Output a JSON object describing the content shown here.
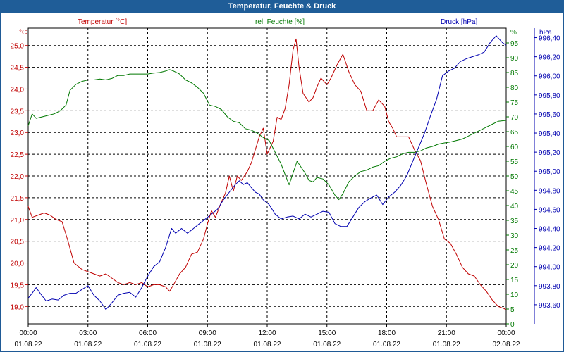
{
  "window": {
    "title": "Temperatur, Feuchte & Druck"
  },
  "colors": {
    "temperature": "#c00000",
    "humidity": "#007800",
    "pressure": "#0000b0",
    "grid": "#000000",
    "titlebar": "#1f5d98"
  },
  "chart_data": {
    "type": "line",
    "title": "Temperatur, Feuchte & Druck",
    "legend": {
      "temperature": "Temperatur [°C]",
      "humidity": "rel. Feuchte [%]",
      "pressure": "Druck [hPa]"
    },
    "axes": {
      "temperature": {
        "unit": "°C",
        "min": 18.6,
        "max": 25.4,
        "ticks": [
          "19,0",
          "19,5",
          "20,0",
          "20,5",
          "21,0",
          "21,5",
          "22,0",
          "22,5",
          "23,0",
          "23,5",
          "24,0",
          "24,5",
          "25,0"
        ],
        "tick_values": [
          19.0,
          19.5,
          20.0,
          20.5,
          21.0,
          21.5,
          22.0,
          22.5,
          23.0,
          23.5,
          24.0,
          24.5,
          25.0
        ]
      },
      "humidity": {
        "unit": "%",
        "min": 0,
        "max": 100,
        "ticks": [
          "0",
          "5",
          "10",
          "15",
          "20",
          "25",
          "30",
          "35",
          "40",
          "45",
          "50",
          "55",
          "60",
          "65",
          "70",
          "75",
          "80",
          "85",
          "90",
          "95"
        ],
        "tick_values": [
          0,
          5,
          10,
          15,
          20,
          25,
          30,
          35,
          40,
          45,
          50,
          55,
          60,
          65,
          70,
          75,
          80,
          85,
          90,
          95
        ]
      },
      "pressure": {
        "unit": "hPa",
        "min": 993.4,
        "max": 996.5,
        "ticks": [
          "993,60",
          "993,80",
          "994,00",
          "994,20",
          "994,40",
          "994,60",
          "994,80",
          "995,00",
          "995,20",
          "995,40",
          "995,60",
          "995,80",
          "996,00",
          "996,20",
          "996,40"
        ],
        "tick_values": [
          993.6,
          993.8,
          994.0,
          994.2,
          994.4,
          994.6,
          994.8,
          995.0,
          995.2,
          995.4,
          995.6,
          995.8,
          996.0,
          996.2,
          996.4
        ]
      },
      "x": {
        "min": 0,
        "max": 24,
        "unit": "hours",
        "ticks": [
          {
            "hour": 0,
            "time": "00:00",
            "date": "01.08.22"
          },
          {
            "hour": 3,
            "time": "03:00",
            "date": "01.08.22"
          },
          {
            "hour": 6,
            "time": "06:00",
            "date": "01.08.22"
          },
          {
            "hour": 9,
            "time": "09:00",
            "date": "01.08.22"
          },
          {
            "hour": 12,
            "time": "12:00",
            "date": "01.08.22"
          },
          {
            "hour": 15,
            "time": "15:00",
            "date": "01.08.22"
          },
          {
            "hour": 18,
            "time": "18:00",
            "date": "01.08.22"
          },
          {
            "hour": 21,
            "time": "21:00",
            "date": "01.08.22"
          },
          {
            "hour": 24,
            "time": "00:00",
            "date": "02.08.22"
          }
        ]
      }
    },
    "series": [
      {
        "name": "Temperatur [°C]",
        "axis": "temperature",
        "points": [
          [
            0,
            21.3
          ],
          [
            0.2,
            21.05
          ],
          [
            0.5,
            21.1
          ],
          [
            0.8,
            21.15
          ],
          [
            1.1,
            21.1
          ],
          [
            1.4,
            21.0
          ],
          [
            1.7,
            20.95
          ],
          [
            2.0,
            20.5
          ],
          [
            2.3,
            20.0
          ],
          [
            2.7,
            19.85
          ],
          [
            3.0,
            19.8
          ],
          [
            3.3,
            19.75
          ],
          [
            3.6,
            19.7
          ],
          [
            3.9,
            19.75
          ],
          [
            4.2,
            19.65
          ],
          [
            4.5,
            19.55
          ],
          [
            4.8,
            19.5
          ],
          [
            5.1,
            19.55
          ],
          [
            5.4,
            19.5
          ],
          [
            5.7,
            19.55
          ],
          [
            6.0,
            19.45
          ],
          [
            6.3,
            19.5
          ],
          [
            6.6,
            19.5
          ],
          [
            6.9,
            19.45
          ],
          [
            7.1,
            19.35
          ],
          [
            7.3,
            19.5
          ],
          [
            7.6,
            19.75
          ],
          [
            7.9,
            19.9
          ],
          [
            8.2,
            20.2
          ],
          [
            8.5,
            20.25
          ],
          [
            8.8,
            20.55
          ],
          [
            9.0,
            20.9
          ],
          [
            9.2,
            21.2
          ],
          [
            9.4,
            21.05
          ],
          [
            9.7,
            21.4
          ],
          [
            9.9,
            21.6
          ],
          [
            10.1,
            22.0
          ],
          [
            10.3,
            21.65
          ],
          [
            10.5,
            22.0
          ],
          [
            10.7,
            21.9
          ],
          [
            11.0,
            22.1
          ],
          [
            11.2,
            22.3
          ],
          [
            11.4,
            22.6
          ],
          [
            11.6,
            22.9
          ],
          [
            11.8,
            23.1
          ],
          [
            12.0,
            22.5
          ],
          [
            12.1,
            22.6
          ],
          [
            12.3,
            22.8
          ],
          [
            12.5,
            23.35
          ],
          [
            12.7,
            23.3
          ],
          [
            12.9,
            23.55
          ],
          [
            13.1,
            24.1
          ],
          [
            13.3,
            24.9
          ],
          [
            13.45,
            25.15
          ],
          [
            13.6,
            24.5
          ],
          [
            13.8,
            23.9
          ],
          [
            14.1,
            23.7
          ],
          [
            14.3,
            23.8
          ],
          [
            14.5,
            24.05
          ],
          [
            14.7,
            24.25
          ],
          [
            15.0,
            24.1
          ],
          [
            15.2,
            24.25
          ],
          [
            15.5,
            24.55
          ],
          [
            15.8,
            24.8
          ],
          [
            16.1,
            24.4
          ],
          [
            16.4,
            24.1
          ],
          [
            16.7,
            23.95
          ],
          [
            17.0,
            23.5
          ],
          [
            17.3,
            23.5
          ],
          [
            17.6,
            23.75
          ],
          [
            17.9,
            23.6
          ],
          [
            18.1,
            23.25
          ],
          [
            18.3,
            23.1
          ],
          [
            18.5,
            22.9
          ],
          [
            18.8,
            22.9
          ],
          [
            19.1,
            22.9
          ],
          [
            19.4,
            22.6
          ],
          [
            19.7,
            22.35
          ],
          [
            20.0,
            21.8
          ],
          [
            20.3,
            21.3
          ],
          [
            20.6,
            21.0
          ],
          [
            20.9,
            20.55
          ],
          [
            21.2,
            20.45
          ],
          [
            21.5,
            20.2
          ],
          [
            21.8,
            19.9
          ],
          [
            22.1,
            19.75
          ],
          [
            22.4,
            19.7
          ],
          [
            22.7,
            19.5
          ],
          [
            23.0,
            19.35
          ],
          [
            23.3,
            19.15
          ],
          [
            23.6,
            19.0
          ],
          [
            23.9,
            18.95
          ],
          [
            24.0,
            18.92
          ]
        ]
      },
      {
        "name": "rel. Feuchte [%]",
        "axis": "humidity",
        "points": [
          [
            0,
            67
          ],
          [
            0.2,
            71
          ],
          [
            0.4,
            69.5
          ],
          [
            0.7,
            70
          ],
          [
            1.0,
            70.5
          ],
          [
            1.3,
            71
          ],
          [
            1.6,
            72
          ],
          [
            1.9,
            74
          ],
          [
            2.1,
            79
          ],
          [
            2.4,
            81
          ],
          [
            2.7,
            82
          ],
          [
            3.0,
            82.5
          ],
          [
            3.3,
            82.5
          ],
          [
            3.6,
            82.8
          ],
          [
            3.9,
            82.5
          ],
          [
            4.2,
            83
          ],
          [
            4.5,
            84
          ],
          [
            4.8,
            84
          ],
          [
            5.1,
            84.5
          ],
          [
            5.4,
            84.5
          ],
          [
            5.7,
            84.5
          ],
          [
            6.0,
            84.5
          ],
          [
            6.3,
            84.8
          ],
          [
            6.6,
            85
          ],
          [
            6.9,
            85.5
          ],
          [
            7.1,
            86
          ],
          [
            7.3,
            85.5
          ],
          [
            7.6,
            84.5
          ],
          [
            7.9,
            82.5
          ],
          [
            8.2,
            81.5
          ],
          [
            8.5,
            80
          ],
          [
            8.8,
            78
          ],
          [
            9.1,
            74
          ],
          [
            9.4,
            73.5
          ],
          [
            9.7,
            72.5
          ],
          [
            10.0,
            70
          ],
          [
            10.3,
            68.5
          ],
          [
            10.6,
            68
          ],
          [
            10.9,
            66
          ],
          [
            11.2,
            65.5
          ],
          [
            11.5,
            64.5
          ],
          [
            11.8,
            63
          ],
          [
            12.1,
            62
          ],
          [
            12.4,
            58
          ],
          [
            12.7,
            54
          ],
          [
            12.9,
            50.5
          ],
          [
            13.1,
            47
          ],
          [
            13.3,
            51
          ],
          [
            13.5,
            55
          ],
          [
            13.7,
            53
          ],
          [
            13.9,
            51
          ],
          [
            14.1,
            48.5
          ],
          [
            14.3,
            48
          ],
          [
            14.5,
            49.5
          ],
          [
            14.8,
            49
          ],
          [
            15.1,
            47
          ],
          [
            15.4,
            43.5
          ],
          [
            15.6,
            42
          ],
          [
            15.8,
            44
          ],
          [
            16.1,
            48
          ],
          [
            16.4,
            50
          ],
          [
            16.7,
            51.5
          ],
          [
            17.0,
            52
          ],
          [
            17.3,
            53
          ],
          [
            17.6,
            53.5
          ],
          [
            17.9,
            55
          ],
          [
            18.2,
            56
          ],
          [
            18.5,
            56.5
          ],
          [
            18.8,
            57.5
          ],
          [
            19.1,
            58
          ],
          [
            19.4,
            58
          ],
          [
            19.7,
            58.5
          ],
          [
            20.0,
            59.5
          ],
          [
            20.3,
            60
          ],
          [
            20.6,
            60.8
          ],
          [
            20.9,
            61.2
          ],
          [
            21.2,
            61.5
          ],
          [
            21.5,
            62
          ],
          [
            21.8,
            62.5
          ],
          [
            22.1,
            63.5
          ],
          [
            22.4,
            64.5
          ],
          [
            22.7,
            65.5
          ],
          [
            23.0,
            66.5
          ],
          [
            23.3,
            67.5
          ],
          [
            23.6,
            68.5
          ],
          [
            24.0,
            68.8
          ]
        ]
      },
      {
        "name": "Druck [hPa]",
        "axis": "pressure",
        "points": [
          [
            0,
            993.67
          ],
          [
            0.2,
            993.72
          ],
          [
            0.4,
            993.78
          ],
          [
            0.6,
            993.72
          ],
          [
            0.9,
            993.64
          ],
          [
            1.2,
            993.66
          ],
          [
            1.5,
            993.65
          ],
          [
            1.8,
            993.7
          ],
          [
            2.1,
            993.72
          ],
          [
            2.4,
            993.72
          ],
          [
            2.7,
            993.76
          ],
          [
            3.0,
            993.8
          ],
          [
            3.3,
            993.7
          ],
          [
            3.6,
            993.64
          ],
          [
            3.9,
            993.55
          ],
          [
            4.2,
            993.62
          ],
          [
            4.5,
            993.7
          ],
          [
            4.8,
            993.72
          ],
          [
            5.1,
            993.73
          ],
          [
            5.4,
            993.68
          ],
          [
            5.7,
            993.78
          ],
          [
            6.0,
            993.9
          ],
          [
            6.3,
            994.0
          ],
          [
            6.6,
            994.05
          ],
          [
            6.9,
            994.2
          ],
          [
            7.2,
            994.4
          ],
          [
            7.4,
            994.35
          ],
          [
            7.7,
            994.4
          ],
          [
            8.0,
            994.35
          ],
          [
            8.3,
            994.4
          ],
          [
            8.6,
            994.45
          ],
          [
            8.9,
            994.5
          ],
          [
            9.2,
            994.55
          ],
          [
            9.5,
            994.6
          ],
          [
            9.8,
            994.7
          ],
          [
            10.1,
            994.78
          ],
          [
            10.4,
            994.86
          ],
          [
            10.6,
            994.9
          ],
          [
            10.8,
            994.86
          ],
          [
            11.0,
            994.88
          ],
          [
            11.2,
            994.83
          ],
          [
            11.4,
            994.78
          ],
          [
            11.6,
            994.76
          ],
          [
            11.8,
            994.7
          ],
          [
            12.1,
            994.65
          ],
          [
            12.4,
            994.55
          ],
          [
            12.7,
            994.5
          ],
          [
            13.0,
            994.52
          ],
          [
            13.3,
            994.53
          ],
          [
            13.6,
            994.5
          ],
          [
            13.9,
            994.55
          ],
          [
            14.2,
            994.52
          ],
          [
            14.5,
            994.55
          ],
          [
            14.8,
            994.58
          ],
          [
            15.1,
            994.57
          ],
          [
            15.4,
            994.45
          ],
          [
            15.7,
            994.42
          ],
          [
            16.0,
            994.42
          ],
          [
            16.3,
            994.52
          ],
          [
            16.6,
            994.62
          ],
          [
            16.9,
            994.68
          ],
          [
            17.2,
            994.72
          ],
          [
            17.5,
            994.75
          ],
          [
            17.8,
            994.65
          ],
          [
            18.1,
            994.73
          ],
          [
            18.4,
            994.78
          ],
          [
            18.7,
            994.85
          ],
          [
            19.0,
            994.95
          ],
          [
            19.3,
            995.1
          ],
          [
            19.6,
            995.25
          ],
          [
            19.9,
            995.4
          ],
          [
            20.2,
            995.58
          ],
          [
            20.5,
            995.75
          ],
          [
            20.8,
            996.0
          ],
          [
            21.1,
            996.05
          ],
          [
            21.4,
            996.08
          ],
          [
            21.7,
            996.15
          ],
          [
            22.0,
            996.18
          ],
          [
            22.3,
            996.2
          ],
          [
            22.6,
            996.22
          ],
          [
            22.9,
            996.25
          ],
          [
            23.2,
            996.35
          ],
          [
            23.5,
            996.42
          ],
          [
            23.8,
            996.35
          ],
          [
            24.0,
            996.32
          ]
        ]
      }
    ]
  }
}
